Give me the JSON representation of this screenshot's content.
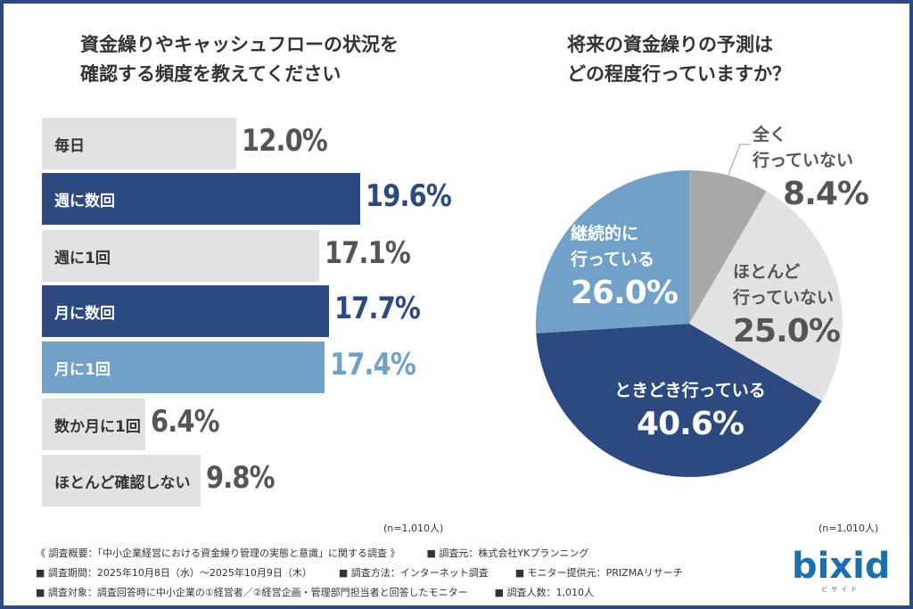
{
  "left_title": "資金繰りやキャッシュフローの状況を\n確認する頻度を教えてください",
  "right_title": "将来の資金繰りの予測は\nどの程度行っていますか？",
  "left_note": "(n=1,010人)",
  "right_note": "(n=1,010人)",
  "chart_data": [
    {
      "type": "bar",
      "orientation": "horizontal",
      "categories": [
        "毎日",
        "週に数回",
        "週に1回",
        "月に数回",
        "月に1回",
        "数か月に1回",
        "ほとんど確認しない"
      ],
      "values": [
        12.0,
        19.6,
        17.1,
        17.7,
        17.4,
        6.4,
        9.8
      ],
      "labels": [
        "12.0%",
        "19.6%",
        "17.1%",
        "17.7%",
        "17.4%",
        "6.4%",
        "9.8%"
      ],
      "styles": [
        "gray",
        "navy",
        "gray",
        "navy",
        "light",
        "gray",
        "gray"
      ]
    },
    {
      "type": "pie",
      "categories": [
        "全く\n行っていない",
        "ほとんど\n行っていない",
        "ときどき行っている",
        "継続的に\n行っている"
      ],
      "values": [
        8.4,
        25.0,
        40.6,
        26.0
      ],
      "labels": [
        "8.4%",
        "25.0%",
        "40.6%",
        "26.0%"
      ],
      "colors": [
        "#a9a9a9",
        "#e2e2e2",
        "#2c4a80",
        "#71a0c9"
      ]
    }
  ],
  "colors": {
    "navy": "#2c4a80",
    "light": "#71a0c9",
    "gray": "#e2e2e2",
    "gray_text": "#555555"
  },
  "footer": {
    "line1": [
      "《 調査概要：「中小企業経営における資金繰り管理の実態と意識」に関する調査 》",
      "■ 調査元：株式会社YKプランニング"
    ],
    "line2": [
      "■ 調査期間：2025年10月8日（水）～2025年10月9日（木）",
      "■ 調査方法：インターネット調査",
      "■ モニター提供元：PRIZMAリサーチ"
    ],
    "line3": [
      "■ 調査対象：調査回答時に中小企業の①経営者／②経営企画・管理部門担当者と回答したモニター",
      "■ 調査人数：1,010人"
    ]
  },
  "logo": {
    "text": "bixid",
    "sub": "ビサイド"
  }
}
